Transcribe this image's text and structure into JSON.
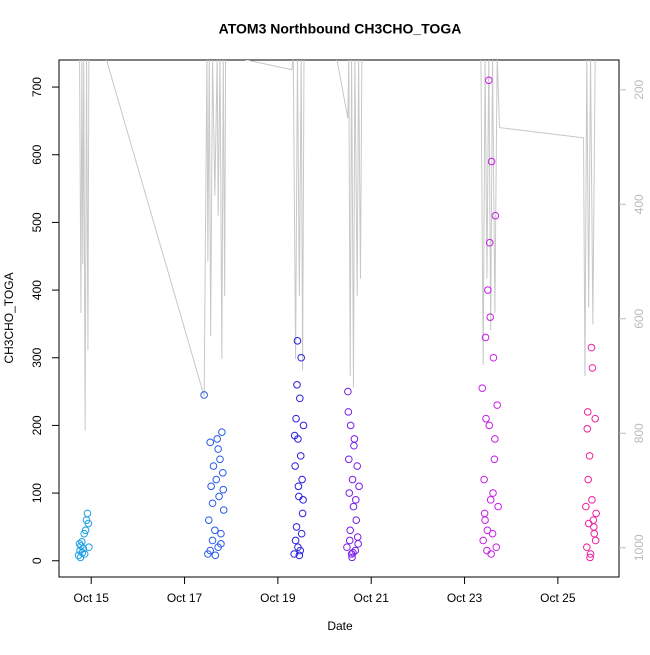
{
  "chart_data": {
    "type": "scatter",
    "title": "ATOM3 Northbound CH3CHO_TOGA",
    "xlabel": "Date",
    "ylabel": "CH3CHO_TOGA",
    "xlim": [
      14.31,
      26.31
    ],
    "ylim": [
      -24,
      740
    ],
    "y2lim": [
      1051,
      148
    ],
    "xticks": [
      {
        "value": 15,
        "label": "Oct 15"
      },
      {
        "value": 17,
        "label": "Oct 17"
      },
      {
        "value": 19,
        "label": "Oct 19"
      },
      {
        "value": 21,
        "label": "Oct 21"
      },
      {
        "value": 23,
        "label": "Oct 23"
      },
      {
        "value": 25,
        "label": "Oct 25"
      }
    ],
    "yticks": [
      0,
      100,
      200,
      300,
      400,
      500,
      600,
      700
    ],
    "y2ticks": [
      200,
      400,
      600,
      800,
      1000
    ],
    "series": [
      {
        "color": "#1ea0e6",
        "x": [
          14.73,
          14.75,
          14.76,
          14.78,
          14.8,
          14.81,
          14.83,
          14.85,
          14.88,
          14.9,
          14.92,
          14.94,
          14.95,
          14.77,
          14.86
        ],
        "values": [
          8,
          25,
          15,
          22,
          28,
          12,
          18,
          40,
          45,
          60,
          70,
          55,
          20,
          5,
          10
        ]
      },
      {
        "color": "#2a5ce8",
        "x": [
          17.42,
          17.5,
          17.52,
          17.55,
          17.57,
          17.6,
          17.62,
          17.65,
          17.68,
          17.7,
          17.72,
          17.74,
          17.76,
          17.78,
          17.8,
          17.82,
          17.84,
          17.55,
          17.6,
          17.66,
          17.72,
          17.78,
          17.83
        ],
        "values": [
          245,
          10,
          60,
          175,
          110,
          30,
          140,
          45,
          120,
          180,
          20,
          95,
          150,
          40,
          190,
          130,
          75,
          15,
          85,
          8,
          165,
          25,
          105
        ]
      },
      {
        "color": "#2a20e0",
        "x": [
          19.35,
          19.37,
          19.39,
          19.4,
          19.42,
          19.43,
          19.45,
          19.47,
          19.48,
          19.5,
          19.52,
          19.53,
          19.55,
          19.38,
          19.41,
          19.44,
          19.46,
          19.49,
          19.51,
          19.54,
          19.36,
          19.43
        ],
        "values": [
          10,
          140,
          210,
          50,
          325,
          180,
          95,
          240,
          15,
          300,
          120,
          70,
          200,
          30,
          260,
          110,
          8,
          155,
          40,
          90,
          185,
          20
        ]
      },
      {
        "color": "#7a1ee8",
        "x": [
          20.48,
          20.5,
          20.52,
          20.54,
          20.56,
          20.58,
          20.6,
          20.62,
          20.64,
          20.66,
          20.68,
          20.7,
          20.72,
          20.74,
          20.51,
          20.55,
          20.59,
          20.63,
          20.67,
          20.71,
          20.53,
          20.61
        ],
        "values": [
          20,
          250,
          150,
          30,
          200,
          10,
          120,
          80,
          180,
          15,
          60,
          140,
          25,
          110,
          220,
          45,
          5,
          170,
          90,
          35,
          100,
          12
        ]
      },
      {
        "color": "#c81ee8",
        "x": [
          23.38,
          23.4,
          23.42,
          23.44,
          23.46,
          23.48,
          23.5,
          23.52,
          23.54,
          23.56,
          23.58,
          23.6,
          23.62,
          23.64,
          23.66,
          23.68,
          23.7,
          23.72,
          23.45,
          23.49,
          23.53,
          23.57,
          23.61,
          23.65,
          23.43,
          23.55
        ],
        "values": [
          255,
          30,
          120,
          60,
          210,
          15,
          400,
          710,
          470,
          90,
          590,
          40,
          300,
          150,
          510,
          20,
          230,
          80,
          330,
          45,
          200,
          10,
          100,
          180,
          70,
          360
        ]
      },
      {
        "color": "#f020a0",
        "x": [
          25.6,
          25.62,
          25.64,
          25.66,
          25.68,
          25.7,
          25.72,
          25.74,
          25.76,
          25.78,
          25.8,
          25.82,
          25.65,
          25.69,
          25.73,
          25.77,
          25.81,
          25.63
        ],
        "values": [
          80,
          20,
          220,
          55,
          155,
          10,
          315,
          285,
          60,
          40,
          210,
          70,
          120,
          5,
          90,
          50,
          30,
          195
        ]
      },
      {
        "color": "#c8c8c8",
        "axis": "y2",
        "line": true,
        "x": [
          14.75,
          14.78,
          14.8,
          14.82,
          14.84,
          14.87,
          14.9,
          14.93,
          14.95,
          15.3,
          17.42,
          17.48,
          17.5,
          17.53,
          17.56,
          17.6,
          17.65,
          17.7,
          17.72,
          17.76,
          17.8,
          17.83,
          17.86,
          17.88,
          19.3,
          19.33,
          19.38,
          19.42,
          19.46,
          19.5,
          19.53,
          19.56,
          20.25,
          20.5,
          20.52,
          20.55,
          20.58,
          20.62,
          20.65,
          20.7,
          20.73,
          20.77,
          20.8,
          23.35,
          23.4,
          23.44,
          23.48,
          23.52,
          23.56,
          23.6,
          23.65,
          23.7,
          23.75,
          25.55,
          25.58,
          25.62,
          25.66,
          25.7,
          25.75,
          25.8
        ],
        "values": [
          140,
          590,
          140,
          505,
          140,
          795,
          140,
          655,
          140,
          140,
          735,
          140,
          500,
          140,
          630,
          140,
          385,
          140,
          420,
          140,
          670,
          140,
          560,
          140,
          165,
          140,
          670,
          140,
          560,
          140,
          690,
          140,
          140,
          250,
          140,
          700,
          140,
          720,
          140,
          560,
          140,
          530,
          140,
          140,
          680,
          140,
          530,
          140,
          620,
          140,
          590,
          140,
          266,
          284,
          700,
          140,
          580,
          140,
          610,
          140
        ]
      }
    ]
  }
}
